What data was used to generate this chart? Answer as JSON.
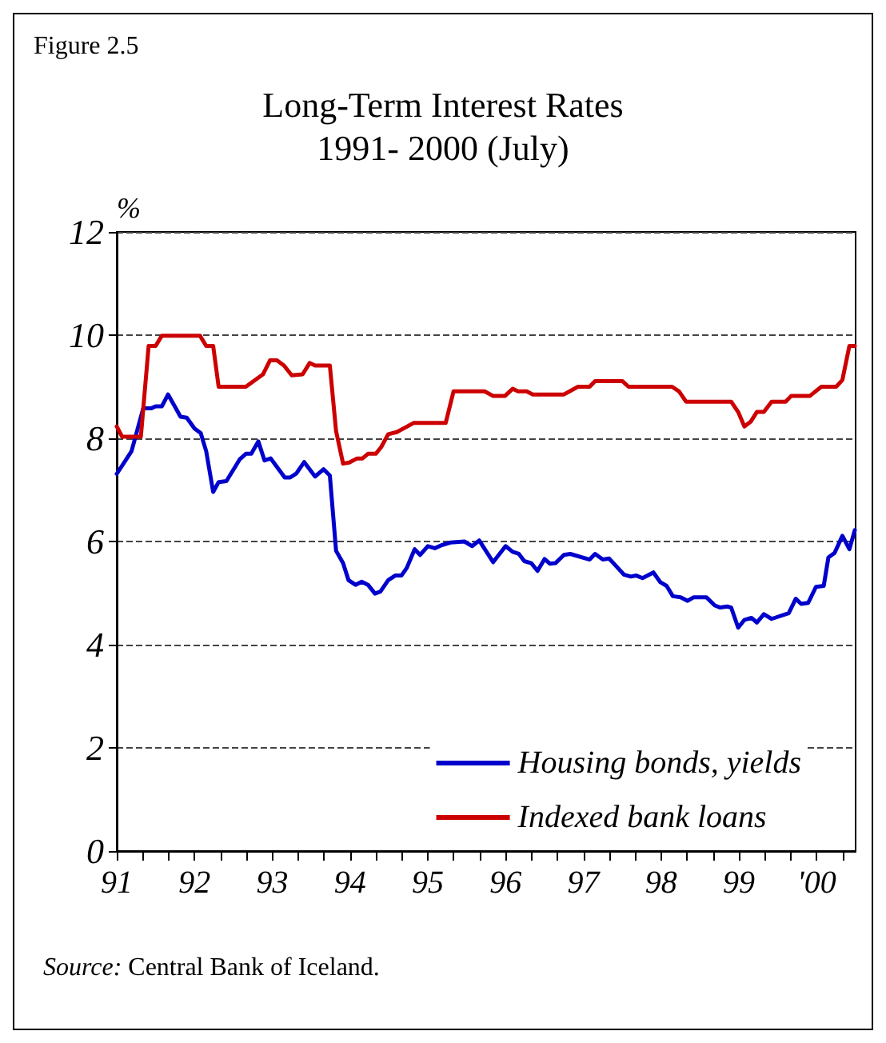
{
  "chart_data": {
    "type": "line",
    "title": "Long-Term Interest Rates\n1991- 2000 (July)",
    "ylabel": "%",
    "annotations": [
      "Figure 2.5",
      "Source: Central Bank of Iceland."
    ],
    "xlim": [
      1991,
      2000.5
    ],
    "xticks": [
      {
        "value": 1991,
        "label": "91"
      },
      {
        "value": 1992,
        "label": "92"
      },
      {
        "value": 1993,
        "label": "93"
      },
      {
        "value": 1994,
        "label": "94"
      },
      {
        "value": 1995,
        "label": "95"
      },
      {
        "value": 1996,
        "label": "96"
      },
      {
        "value": 1997,
        "label": "97"
      },
      {
        "value": 1998,
        "label": "98"
      },
      {
        "value": 1999,
        "label": "99"
      },
      {
        "value": 2000,
        "label": "'00"
      }
    ],
    "ylim": [
      0,
      12
    ],
    "yticks": [
      0,
      2,
      4,
      6,
      8,
      10,
      12
    ],
    "grid": "y",
    "legend": "bottom right",
    "marker": "none",
    "line_style": "solid",
    "series": [
      {
        "name": "Housing bonds, yields",
        "color": "#0000cc",
        "x": [
          1991.0,
          1991.19,
          1991.34,
          1991.44,
          1991.5,
          1991.58,
          1991.66,
          1991.82,
          1991.9,
          1992.0,
          1992.08,
          1992.15,
          1992.24,
          1992.31,
          1992.41,
          1992.58,
          1992.66,
          1992.73,
          1992.82,
          1992.9,
          1992.98,
          1993.16,
          1993.23,
          1993.31,
          1993.41,
          1993.55,
          1993.66,
          1993.74,
          1993.82,
          1993.91,
          1993.98,
          1994.07,
          1994.15,
          1994.23,
          1994.32,
          1994.39,
          1994.49,
          1994.58,
          1994.66,
          1994.73,
          1994.83,
          1994.9,
          1995.0,
          1995.09,
          1995.18,
          1995.29,
          1995.47,
          1995.57,
          1995.66,
          1995.84,
          1996.0,
          1996.09,
          1996.17,
          1996.24,
          1996.33,
          1996.41,
          1996.5,
          1996.57,
          1996.64,
          1996.75,
          1996.83,
          1997.08,
          1997.15,
          1997.25,
          1997.33,
          1997.41,
          1997.52,
          1997.61,
          1997.68,
          1997.76,
          1997.9,
          1997.99,
          1998.07,
          1998.15,
          1998.25,
          1998.34,
          1998.42,
          1998.58,
          1998.69,
          1998.76,
          1998.85,
          1998.9,
          1998.99,
          1999.07,
          1999.16,
          1999.23,
          1999.32,
          1999.42,
          1999.64,
          1999.73,
          1999.8,
          1999.89,
          1999.99,
          2000.09,
          2000.15,
          2000.23,
          2000.33,
          2000.42,
          2000.49
        ],
        "values": [
          7.31,
          7.75,
          8.58,
          8.58,
          8.62,
          8.62,
          8.85,
          8.42,
          8.4,
          8.19,
          8.1,
          7.75,
          6.96,
          7.15,
          7.17,
          7.59,
          7.7,
          7.7,
          7.94,
          7.57,
          7.61,
          7.24,
          7.24,
          7.32,
          7.54,
          7.26,
          7.4,
          7.28,
          5.82,
          5.58,
          5.25,
          5.16,
          5.22,
          5.16,
          4.99,
          5.03,
          5.25,
          5.34,
          5.34,
          5.49,
          5.85,
          5.74,
          5.91,
          5.87,
          5.93,
          5.98,
          6.0,
          5.91,
          6.02,
          5.6,
          5.91,
          5.8,
          5.76,
          5.62,
          5.58,
          5.43,
          5.66,
          5.57,
          5.58,
          5.74,
          5.76,
          5.65,
          5.76,
          5.65,
          5.67,
          5.54,
          5.36,
          5.32,
          5.34,
          5.29,
          5.4,
          5.21,
          5.14,
          4.94,
          4.92,
          4.85,
          4.92,
          4.92,
          4.76,
          4.72,
          4.74,
          4.72,
          4.33,
          4.48,
          4.52,
          4.43,
          4.59,
          4.5,
          4.61,
          4.89,
          4.79,
          4.81,
          5.12,
          5.14,
          5.69,
          5.78,
          6.11,
          5.85,
          6.22
        ]
      },
      {
        "name": "Indexed bank loans",
        "color": "#cc0000",
        "x": [
          1991.0,
          1991.07,
          1991.31,
          1991.41,
          1991.5,
          1991.58,
          1992.07,
          1992.15,
          1992.24,
          1992.31,
          1992.66,
          1992.88,
          1992.97,
          1993.06,
          1993.15,
          1993.25,
          1993.39,
          1993.48,
          1993.55,
          1993.74,
          1993.82,
          1993.91,
          1993.99,
          1994.09,
          1994.16,
          1994.23,
          1994.33,
          1994.4,
          1994.49,
          1994.6,
          1994.82,
          1995.23,
          1995.33,
          1995.73,
          1995.84,
          1995.99,
          1996.09,
          1996.16,
          1996.27,
          1996.35,
          1996.75,
          1996.93,
          1997.08,
          1997.15,
          1997.5,
          1997.58,
          1998.14,
          1998.23,
          1998.32,
          1998.9,
          1998.99,
          1999.07,
          1999.15,
          1999.23,
          1999.32,
          1999.42,
          1999.6,
          1999.67,
          1999.91,
          2000.06,
          2000.25,
          2000.33,
          2000.42,
          2000.49
        ],
        "values": [
          8.23,
          8.03,
          8.03,
          9.79,
          9.79,
          9.99,
          9.99,
          9.79,
          9.79,
          9.0,
          9.0,
          9.24,
          9.51,
          9.51,
          9.41,
          9.22,
          9.24,
          9.46,
          9.41,
          9.41,
          8.14,
          7.51,
          7.53,
          7.61,
          7.61,
          7.7,
          7.7,
          7.83,
          8.08,
          8.12,
          8.3,
          8.3,
          8.91,
          8.91,
          8.82,
          8.82,
          8.96,
          8.91,
          8.91,
          8.85,
          8.85,
          9.0,
          9.0,
          9.11,
          9.11,
          9.0,
          9.0,
          8.91,
          8.71,
          8.71,
          8.51,
          8.23,
          8.32,
          8.51,
          8.51,
          8.71,
          8.71,
          8.82,
          8.82,
          9.0,
          9.0,
          9.13,
          9.79,
          9.79
        ]
      }
    ]
  }
}
